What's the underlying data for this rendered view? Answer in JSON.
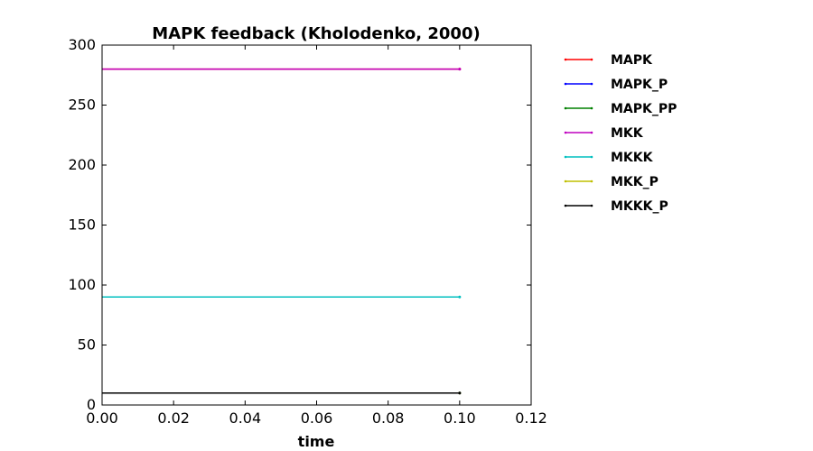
{
  "chart_data": {
    "type": "line",
    "title": "MAPK feedback (Kholodenko, 2000)",
    "xlabel": "time",
    "ylabel": "",
    "xlim": [
      0,
      0.12
    ],
    "ylim": [
      0,
      300
    ],
    "xticks": [
      "0.00",
      "0.02",
      "0.04",
      "0.06",
      "0.08",
      "0.10",
      "0.12"
    ],
    "yticks": [
      "0",
      "50",
      "100",
      "150",
      "200",
      "250",
      "300"
    ],
    "grid": false,
    "legend_position": "outside-right",
    "series": [
      {
        "name": "MAPK",
        "color": "#ff0000",
        "x": [
          0,
          0.1
        ],
        "y": [
          280,
          280
        ]
      },
      {
        "name": "MAPK_P",
        "color": "#0000ff",
        "x": [
          0,
          0.1
        ],
        "y": [
          10,
          10
        ]
      },
      {
        "name": "MAPK_PP",
        "color": "#008000",
        "x": [
          0,
          0.1
        ],
        "y": [
          10,
          10
        ]
      },
      {
        "name": "MKK",
        "color": "#bf00bf",
        "x": [
          0,
          0.1
        ],
        "y": [
          280,
          280
        ]
      },
      {
        "name": "MKKK",
        "color": "#00bfbf",
        "x": [
          0,
          0.1
        ],
        "y": [
          90,
          90
        ]
      },
      {
        "name": "MKK_P",
        "color": "#bfbf00",
        "x": [
          0,
          0.1
        ],
        "y": [
          10,
          10
        ]
      },
      {
        "name": "MKKK_P",
        "color": "#000000",
        "x": [
          0,
          0.1
        ],
        "y": [
          10,
          10
        ]
      }
    ]
  }
}
